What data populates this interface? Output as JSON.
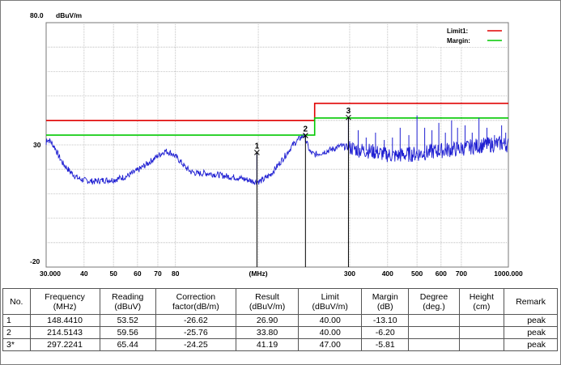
{
  "chart_data": {
    "type": "line",
    "y_unit_label": "dBuV/m",
    "y_top_label": "80.0",
    "y_tick_labels": [
      "30",
      "-20"
    ],
    "ylim": [
      -20,
      80
    ],
    "x_scale": "log",
    "xlim": [
      30,
      1000
    ],
    "x_tick_labels": [
      {
        "value": 30,
        "label": "30.000"
      },
      {
        "value": 40,
        "label": "40"
      },
      {
        "value": 50,
        "label": "50"
      },
      {
        "value": 60,
        "label": "60"
      },
      {
        "value": 70,
        "label": "70"
      },
      {
        "value": 80,
        "label": "80"
      },
      {
        "value": 150,
        "label": "(MHz)"
      },
      {
        "value": 300,
        "label": "300"
      },
      {
        "value": 400,
        "label": "400"
      },
      {
        "value": 500,
        "label": "500"
      },
      {
        "value": 600,
        "label": "600"
      },
      {
        "value": 700,
        "label": "700"
      },
      {
        "value": 1000,
        "label": "1000.000"
      }
    ],
    "legend": [
      {
        "name": "Limit1:",
        "color": "#e00000"
      },
      {
        "name": "Margin:",
        "color": "#00c800"
      }
    ],
    "limit_line": {
      "color": "#e00000",
      "points": [
        [
          30,
          40
        ],
        [
          230,
          40
        ],
        [
          230,
          47
        ],
        [
          1000,
          47
        ]
      ]
    },
    "margin_line": {
      "color": "#00c800",
      "points": [
        [
          30,
          34
        ],
        [
          230,
          34
        ],
        [
          230,
          41
        ],
        [
          1000,
          41
        ]
      ]
    },
    "trace_color": "#1f1fd2",
    "trace": [
      [
        30,
        32.5
      ],
      [
        31,
        31.5
      ],
      [
        32,
        29
      ],
      [
        33,
        25.5
      ],
      [
        34,
        22.5
      ],
      [
        36,
        19
      ],
      [
        38,
        16.5
      ],
      [
        40,
        15.5
      ],
      [
        43,
        15
      ],
      [
        46,
        15.5
      ],
      [
        50,
        15.7
      ],
      [
        55,
        17
      ],
      [
        60,
        19.5
      ],
      [
        65,
        22.5
      ],
      [
        70,
        25.5
      ],
      [
        74,
        27.5
      ],
      [
        78,
        26.5
      ],
      [
        82,
        24
      ],
      [
        86,
        21
      ],
      [
        90,
        19
      ],
      [
        95,
        18.2
      ],
      [
        100,
        18.5
      ],
      [
        110,
        17.8
      ],
      [
        120,
        17
      ],
      [
        130,
        16.5
      ],
      [
        140,
        15.5
      ],
      [
        148,
        14.8
      ],
      [
        155,
        15.5
      ],
      [
        165,
        18
      ],
      [
        175,
        22
      ],
      [
        185,
        26
      ],
      [
        195,
        30
      ],
      [
        205,
        32.5
      ],
      [
        212,
        34
      ],
      [
        216,
        31.5
      ],
      [
        222,
        27
      ],
      [
        230,
        26
      ],
      [
        245,
        27
      ],
      [
        260,
        28
      ],
      [
        280,
        29.5
      ],
      [
        297,
        29
      ],
      [
        320,
        28
      ],
      [
        350,
        27.5
      ],
      [
        380,
        26.5
      ],
      [
        420,
        25.5
      ],
      [
        460,
        26
      ],
      [
        520,
        26.5
      ],
      [
        580,
        27.5
      ],
      [
        640,
        28
      ],
      [
        700,
        28.5
      ],
      [
        780,
        29.5
      ],
      [
        860,
        30
      ],
      [
        940,
        30.5
      ],
      [
        1000,
        30
      ]
    ],
    "trace_spikes": [
      [
        148.441,
        26.9
      ],
      [
        214.5143,
        33.8
      ],
      [
        297.2241,
        41.19
      ],
      [
        320,
        36
      ],
      [
        340,
        33
      ],
      [
        365,
        35
      ],
      [
        390,
        32
      ],
      [
        415,
        33
      ],
      [
        440,
        37
      ],
      [
        470,
        34
      ],
      [
        500,
        42
      ],
      [
        530,
        37
      ],
      [
        560,
        36
      ],
      [
        590,
        39
      ],
      [
        620,
        35
      ],
      [
        650,
        40
      ],
      [
        680,
        37
      ],
      [
        720,
        38
      ],
      [
        760,
        35
      ],
      [
        800,
        41
      ],
      [
        850,
        37
      ],
      [
        900,
        34
      ],
      [
        950,
        38
      ],
      [
        980,
        35
      ]
    ],
    "markers": [
      {
        "label": "1",
        "x": 148.441,
        "y": 26.9
      },
      {
        "label": "2",
        "x": 214.5143,
        "y": 33.8
      },
      {
        "label": "3",
        "x": 297.2241,
        "y": 41.19
      }
    ]
  },
  "table": {
    "headers": [
      [
        "No."
      ],
      [
        "Frequency",
        "(MHz)"
      ],
      [
        "Reading",
        "(dBuV)"
      ],
      [
        "Correction",
        "factor(dB/m)"
      ],
      [
        "Result",
        "(dBuV/m)"
      ],
      [
        "Limit",
        "(dBuV/m)"
      ],
      [
        "Margin",
        "(dB)"
      ],
      [
        "Degree",
        "(deg.)"
      ],
      [
        "Height",
        "(cm)"
      ],
      [
        "Remark"
      ]
    ],
    "rows": [
      [
        "1",
        "148.4410",
        "53.52",
        "-26.62",
        "26.90",
        "40.00",
        "-13.10",
        "",
        "",
        "peak"
      ],
      [
        "2",
        "214.5143",
        "59.56",
        "-25.76",
        "33.80",
        "40.00",
        "-6.20",
        "",
        "",
        "peak"
      ],
      [
        "3*",
        "297.2241",
        "65.44",
        "-24.25",
        "41.19",
        "47.00",
        "-5.81",
        "",
        "",
        "peak"
      ]
    ]
  }
}
